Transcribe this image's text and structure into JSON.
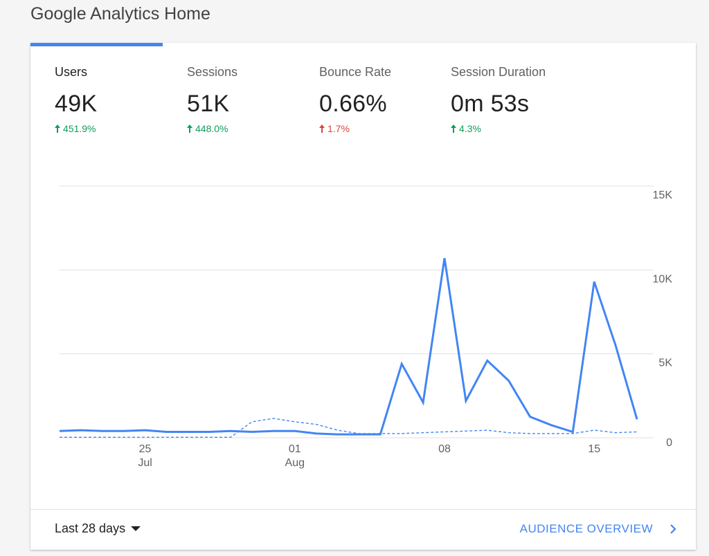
{
  "page_title": "Google Analytics Home",
  "metrics": [
    {
      "label": "Users",
      "value": "49K",
      "change": "451.9%",
      "direction": "up",
      "color": "#0f9d58"
    },
    {
      "label": "Sessions",
      "value": "51K",
      "change": "448.0%",
      "direction": "up",
      "color": "#0f9d58"
    },
    {
      "label": "Bounce Rate",
      "value": "0.66%",
      "change": "1.7%",
      "direction": "up",
      "color": "#db4437"
    },
    {
      "label": "Session Duration",
      "value": "0m 53s",
      "change": "4.3%",
      "direction": "up",
      "color": "#0f9d58"
    }
  ],
  "footer": {
    "date_range": "Last 28 days",
    "audience_link": "AUDIENCE OVERVIEW"
  },
  "colors": {
    "accent": "#4285f4",
    "positive": "#0f9d58",
    "negative": "#db4437"
  },
  "chart_data": {
    "type": "line",
    "y_ticks": [
      "15K",
      "10K",
      "5K",
      "0"
    ],
    "ylim": [
      0,
      15000
    ],
    "x_ticks": [
      {
        "day": "25",
        "month": "Jul"
      },
      {
        "day": "01",
        "month": "Aug"
      },
      {
        "day": "08",
        "month": ""
      },
      {
        "day": "15",
        "month": ""
      }
    ],
    "x": [
      "Jul 21",
      "Jul 22",
      "Jul 23",
      "Jul 24",
      "Jul 25",
      "Jul 26",
      "Jul 27",
      "Jul 28",
      "Jul 29",
      "Jul 30",
      "Jul 31",
      "Aug 01",
      "Aug 02",
      "Aug 03",
      "Aug 04",
      "Aug 05",
      "Aug 06",
      "Aug 07",
      "Aug 08",
      "Aug 09",
      "Aug 10",
      "Aug 11",
      "Aug 12",
      "Aug 13",
      "Aug 14",
      "Aug 15",
      "Aug 16",
      "Aug 17"
    ],
    "series": [
      {
        "style": "solid",
        "values": [
          400,
          450,
          400,
          400,
          450,
          350,
          350,
          350,
          400,
          350,
          400,
          400,
          250,
          200,
          200,
          200,
          4400,
          2100,
          10700,
          2200,
          4600,
          3400,
          1250,
          750,
          350,
          9300,
          5500,
          1100
        ]
      },
      {
        "style": "dashed",
        "values": [
          30,
          30,
          30,
          30,
          30,
          30,
          30,
          30,
          30,
          950,
          1150,
          950,
          800,
          450,
          250,
          250,
          250,
          300,
          350,
          400,
          450,
          300,
          250,
          250,
          250,
          450,
          300,
          350
        ]
      }
    ],
    "grid": true,
    "y_axis_position": "right"
  }
}
